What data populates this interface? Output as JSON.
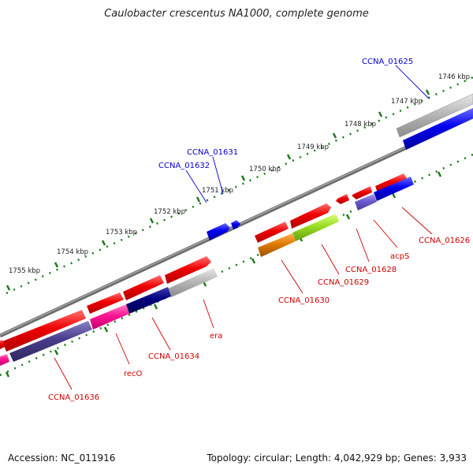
{
  "title": "Caulobacter crescentus NA1000, complete genome",
  "footer": {
    "accession": "Accession: NC_011916",
    "summary": "Topology: circular; Length: 4,042,929 bp; Genes: 3,933"
  },
  "ticks": [
    {
      "label": "1746 kbp"
    },
    {
      "label": "1747 kbp"
    },
    {
      "label": "1748 kbp"
    },
    {
      "label": "1749 kbp"
    },
    {
      "label": "1750 kbp"
    },
    {
      "label": "1751 kbp"
    },
    {
      "label": "1752 kbp"
    },
    {
      "label": "1753 kbp"
    },
    {
      "label": "1754 kbp"
    },
    {
      "label": "1755 kbp"
    }
  ],
  "genes": {
    "ccna_01625": "CCNA_01625",
    "ccna_01631": "CCNA_01631",
    "ccna_01632": "CCNA_01632",
    "ccna_01626": "CCNA_01626",
    "acps": "acpS",
    "ccna_01628": "CCNA_01628",
    "ccna_01629": "CCNA_01629",
    "ccna_01630": "CCNA_01630",
    "era": "era",
    "ccna_01634": "CCNA_01634",
    "reco": "recO",
    "ccna_01636": "CCNA_01636"
  },
  "colors": {
    "forward_label": "#0000cc",
    "reverse_label": "#cc0000",
    "backbone": "#777777",
    "tick": "#1a7a1a",
    "red_feature": "#ee0000",
    "blue_feature": "#0000ee",
    "navy_feature": "#000080",
    "slate_feature": "#483d8b",
    "gray_feature": "#b0b0b0",
    "pink_feature": "#ff1493",
    "lime_feature": "#99dd22",
    "orange_feature": "#e07b00",
    "lightslate_feature": "#6a5acd"
  }
}
